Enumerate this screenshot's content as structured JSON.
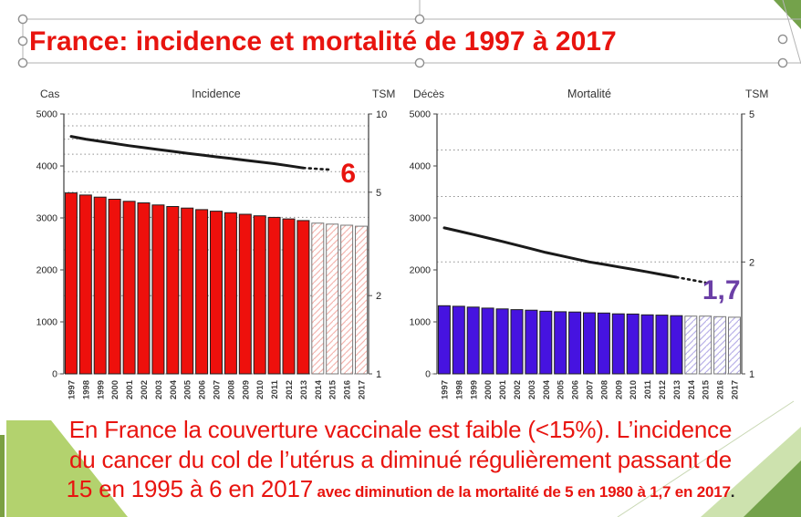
{
  "slide": {
    "title": "France: incidence et mortalité de 1997 à 2017",
    "body": {
      "line1": "En France la couverture vaccinale est faible (<15%). L’incidence",
      "line2": "du cancer du col de l’utérus a diminué régulièrement passant de",
      "line3_large": "15 en 1995 à 6 en 2017",
      "line3_small": " avec diminution de la mortalité de 5 en 1980 à 1,7 en 2017",
      "line3_end": "."
    }
  },
  "colors": {
    "title_red": "#e8140f",
    "body_red": "#e8140f",
    "incidence_bar": "#ee100c",
    "mortality_bar": "#4613e0",
    "incidence_end_label": "#e8140f",
    "mortality_end_label": "#6b3fa6",
    "hatch_red": "#f4b6b0",
    "hatch_blue": "#b9b1e8",
    "trend_line": "#1a1a1a",
    "theme_green_light": "#b3d26e",
    "theme_green_pale": "#cde2ae",
    "theme_green_dark": "#74a24b",
    "theme_green_edge": "#7ba042",
    "selection_gray": "#b0b0b0"
  },
  "chart_data": [
    {
      "type": "bar+line",
      "title": "Incidence",
      "left_axis_label": "Cas",
      "right_axis_label": "TSM",
      "categories": [
        "1997",
        "1998",
        "1999",
        "2000",
        "2001",
        "2002",
        "2003",
        "2004",
        "2005",
        "2006",
        "2007",
        "2008",
        "2009",
        "2010",
        "2011",
        "2012",
        "2013",
        "2014",
        "2015",
        "2016",
        "2017"
      ],
      "left_axis": {
        "min": 0,
        "max": 5000,
        "tick_step": 1000
      },
      "right_axis": {
        "scale": "log",
        "min": 1,
        "max": 10,
        "labeled_ticks": [
          1,
          2,
          5,
          10
        ],
        "grid_ticks": [
          2,
          3,
          4,
          5,
          6,
          7,
          8,
          9,
          10
        ]
      },
      "bars": {
        "name": "Cas",
        "axis": "left",
        "solid_count": 17,
        "values": [
          3480,
          3440,
          3400,
          3360,
          3320,
          3290,
          3250,
          3220,
          3190,
          3160,
          3130,
          3100,
          3070,
          3040,
          3010,
          2980,
          2950,
          2900,
          2880,
          2860,
          2840
        ],
        "fill": "#ee100c",
        "hatch": "#f4b6b0"
      },
      "line": {
        "name": "TSM",
        "axis": "right",
        "solid_count": 17,
        "values": [
          8.2,
          8.0,
          7.85,
          7.7,
          7.55,
          7.42,
          7.3,
          7.18,
          7.06,
          6.95,
          6.84,
          6.74,
          6.64,
          6.54,
          6.44,
          6.32,
          6.2,
          6.15,
          6.1,
          6.05,
          6.0
        ],
        "end_label": "6",
        "end_label_color": "#e8140f"
      }
    },
    {
      "type": "bar+line",
      "title": "Mortalité",
      "left_axis_label": "Décès",
      "right_axis_label": "TSM",
      "categories": [
        "1997",
        "1998",
        "1999",
        "2000",
        "2001",
        "2002",
        "2003",
        "2004",
        "2005",
        "2006",
        "2007",
        "2008",
        "2009",
        "2010",
        "2011",
        "2012",
        "2013",
        "2014",
        "2015",
        "2016",
        "2017"
      ],
      "left_axis": {
        "min": 0,
        "max": 5000,
        "tick_step": 1000
      },
      "right_axis": {
        "scale": "log",
        "min": 1,
        "max": 5,
        "labeled_ticks": [
          1,
          2,
          5
        ],
        "grid_ticks": [
          2,
          3,
          4,
          5
        ]
      },
      "bars": {
        "name": "Décès",
        "axis": "left",
        "solid_count": 17,
        "values": [
          1310,
          1300,
          1285,
          1265,
          1250,
          1235,
          1225,
          1205,
          1195,
          1190,
          1175,
          1170,
          1155,
          1150,
          1135,
          1130,
          1120,
          1110,
          1110,
          1100,
          1090
        ],
        "fill": "#4613e0",
        "hatch": "#b9b1e8"
      },
      "line": {
        "name": "TSM",
        "axis": "right",
        "solid_count": 17,
        "values": [
          2.47,
          2.42,
          2.37,
          2.32,
          2.27,
          2.22,
          2.17,
          2.12,
          2.08,
          2.04,
          2.0,
          1.97,
          1.94,
          1.91,
          1.88,
          1.85,
          1.82,
          1.79,
          1.76,
          1.73,
          1.7
        ],
        "end_label": "1,7",
        "end_label_color": "#6b3fa6"
      }
    }
  ]
}
